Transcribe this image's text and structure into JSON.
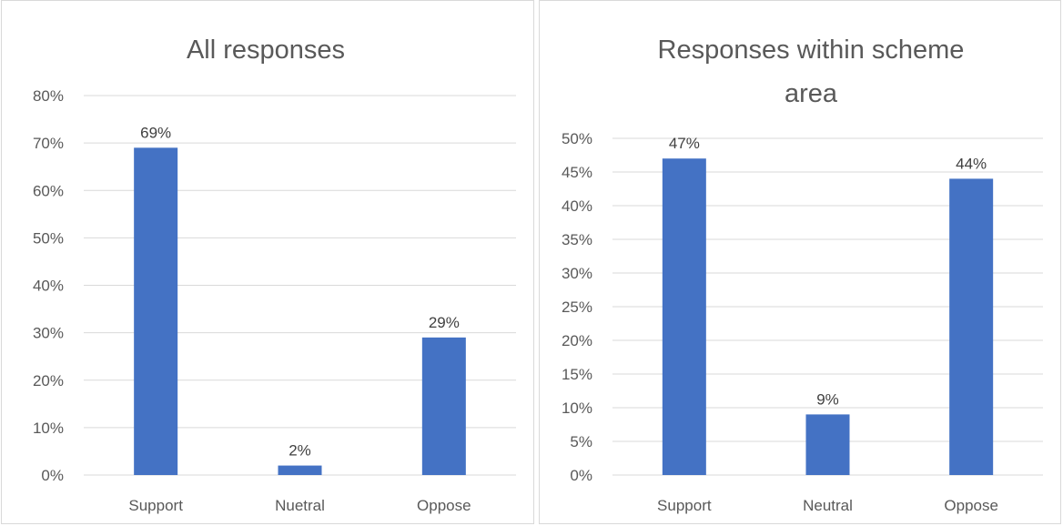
{
  "chart_data": [
    {
      "type": "bar",
      "title_lines": [
        "All responses"
      ],
      "categories": [
        "Support",
        "Nuetral",
        "Oppose"
      ],
      "values": [
        69,
        2,
        29
      ],
      "data_labels": [
        "69%",
        "2%",
        "29%"
      ],
      "ylim": [
        0,
        80
      ],
      "yticks": [
        "0%",
        "10%",
        "20%",
        "30%",
        "40%",
        "50%",
        "60%",
        "70%",
        "80%"
      ],
      "grid": true,
      "bar_color": "#4472c4"
    },
    {
      "type": "bar",
      "title_lines": [
        "Responses within scheme",
        "area"
      ],
      "categories": [
        "Support",
        "Neutral",
        "Oppose"
      ],
      "values": [
        47,
        9,
        44
      ],
      "data_labels": [
        "47%",
        "9%",
        "44%"
      ],
      "ylim": [
        0,
        50
      ],
      "yticks": [
        "0%",
        "5%",
        "10%",
        "15%",
        "20%",
        "25%",
        "30%",
        "35%",
        "40%",
        "45%",
        "50%"
      ],
      "grid": true,
      "bar_color": "#4472c4"
    }
  ]
}
